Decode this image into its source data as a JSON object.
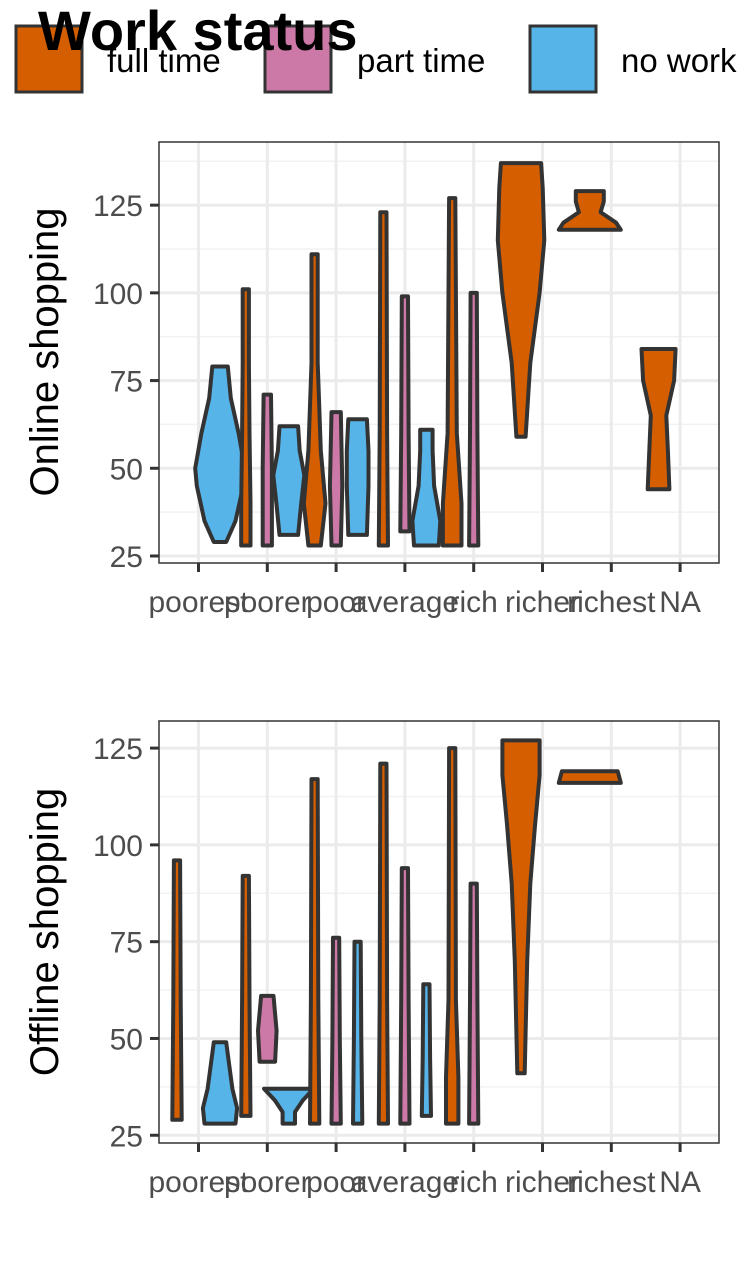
{
  "legend": {
    "title": "Work status",
    "items": [
      {
        "key": "full_time",
        "label": "full time",
        "color": "#D55E00"
      },
      {
        "key": "part_time",
        "label": "part time",
        "color": "#CC79A7"
      },
      {
        "key": "no_work",
        "label": "no work",
        "color": "#56B4E9"
      }
    ]
  },
  "chart_data": [
    {
      "type": "violin",
      "ylabel": "Online shopping",
      "xlabel": "",
      "categories": [
        "poorest",
        "poorer",
        "poor",
        "average",
        "rich",
        "richer",
        "richest",
        "NA"
      ],
      "ylim": [
        23,
        143
      ],
      "yticks": [
        25,
        50,
        75,
        100,
        125
      ],
      "grid": true,
      "violins": [
        {
          "category": "poorest",
          "status": "no_work",
          "min": 29,
          "max": 79,
          "shape": [
            [
              29,
              0.2
            ],
            [
              35,
              0.5
            ],
            [
              45,
              0.75
            ],
            [
              50,
              0.8
            ],
            [
              60,
              0.6
            ],
            [
              70,
              0.35
            ],
            [
              79,
              0.25
            ]
          ]
        },
        {
          "category": "poorer",
          "status": "full_time",
          "min": 28,
          "max": 101,
          "shape": [
            [
              28,
              0.15
            ],
            [
              40,
              0.15
            ],
            [
              60,
              0.12
            ],
            [
              80,
              0.1
            ],
            [
              101,
              0.1
            ]
          ]
        },
        {
          "category": "poorer",
          "status": "part_time",
          "min": 28,
          "max": 71,
          "shape": [
            [
              28,
              0.15
            ],
            [
              50,
              0.15
            ],
            [
              71,
              0.12
            ]
          ]
        },
        {
          "category": "poorer",
          "status": "no_work",
          "min": 31,
          "max": 62,
          "shape": [
            [
              31,
              0.3
            ],
            [
              40,
              0.4
            ],
            [
              48,
              0.5
            ],
            [
              55,
              0.35
            ],
            [
              62,
              0.3
            ]
          ]
        },
        {
          "category": "poor",
          "status": "full_time",
          "min": 28,
          "max": 111,
          "shape": [
            [
              28,
              0.2
            ],
            [
              40,
              0.35
            ],
            [
              55,
              0.2
            ],
            [
              80,
              0.1
            ],
            [
              111,
              0.1
            ]
          ]
        },
        {
          "category": "poor",
          "status": "part_time",
          "min": 28,
          "max": 66,
          "shape": [
            [
              28,
              0.15
            ],
            [
              45,
              0.2
            ],
            [
              66,
              0.15
            ]
          ]
        },
        {
          "category": "poor",
          "status": "no_work",
          "min": 31,
          "max": 64,
          "shape": [
            [
              31,
              0.3
            ],
            [
              45,
              0.35
            ],
            [
              55,
              0.35
            ],
            [
              64,
              0.3
            ]
          ]
        },
        {
          "category": "average",
          "status": "full_time",
          "min": 28,
          "max": 123,
          "shape": [
            [
              28,
              0.15
            ],
            [
              60,
              0.12
            ],
            [
              123,
              0.1
            ]
          ]
        },
        {
          "category": "average",
          "status": "part_time",
          "min": 32,
          "max": 99,
          "shape": [
            [
              32,
              0.15
            ],
            [
              60,
              0.12
            ],
            [
              99,
              0.1
            ]
          ]
        },
        {
          "category": "average",
          "status": "no_work",
          "min": 28,
          "max": 61,
          "shape": [
            [
              28,
              0.4
            ],
            [
              35,
              0.45
            ],
            [
              45,
              0.25
            ],
            [
              55,
              0.2
            ],
            [
              61,
              0.2
            ]
          ]
        },
        {
          "category": "rich",
          "status": "full_time",
          "min": 28,
          "max": 127,
          "shape": [
            [
              28,
              0.3
            ],
            [
              40,
              0.3
            ],
            [
              60,
              0.15
            ],
            [
              127,
              0.1
            ]
          ]
        },
        {
          "category": "rich",
          "status": "part_time",
          "min": 28,
          "max": 100,
          "shape": [
            [
              28,
              0.15
            ],
            [
              60,
              0.12
            ],
            [
              100,
              0.1
            ]
          ]
        },
        {
          "category": "richer",
          "status": "full_time",
          "min": 59,
          "max": 137,
          "shape": [
            [
              59,
              0.15
            ],
            [
              80,
              0.3
            ],
            [
              100,
              0.6
            ],
            [
              115,
              0.75
            ],
            [
              130,
              0.7
            ],
            [
              137,
              0.65
            ]
          ]
        },
        {
          "category": "richest",
          "status": "full_time",
          "min": 118,
          "max": 129,
          "shape": [
            [
              118,
              1.0
            ],
            [
              120,
              0.85
            ],
            [
              123,
              0.35
            ],
            [
              126,
              0.45
            ],
            [
              129,
              0.45
            ]
          ]
        },
        {
          "category": "NA",
          "status": "full_time",
          "min": 44,
          "max": 84,
          "shape": [
            [
              44,
              0.35
            ],
            [
              55,
              0.3
            ],
            [
              65,
              0.25
            ],
            [
              75,
              0.5
            ],
            [
              84,
              0.55
            ]
          ]
        }
      ]
    },
    {
      "type": "violin",
      "ylabel": "Offline shopping",
      "xlabel": "",
      "categories": [
        "poorest",
        "poorer",
        "poor",
        "average",
        "rich",
        "richer",
        "richest",
        "NA"
      ],
      "ylim": [
        23,
        132
      ],
      "yticks": [
        25,
        50,
        75,
        100,
        125
      ],
      "grid": true,
      "violins": [
        {
          "category": "poorest",
          "status": "full_time",
          "min": 29,
          "max": 96,
          "shape": [
            [
              29,
              0.15
            ],
            [
              60,
              0.12
            ],
            [
              96,
              0.1
            ]
          ]
        },
        {
          "category": "poorest",
          "status": "no_work",
          "min": 28,
          "max": 49,
          "shape": [
            [
              28,
              0.5
            ],
            [
              32,
              0.55
            ],
            [
              37,
              0.4
            ],
            [
              43,
              0.3
            ],
            [
              49,
              0.2
            ]
          ]
        },
        {
          "category": "poorer",
          "status": "full_time",
          "min": 30,
          "max": 92,
          "shape": [
            [
              30,
              0.15
            ],
            [
              60,
              0.12
            ],
            [
              92,
              0.1
            ]
          ]
        },
        {
          "category": "poorer",
          "status": "part_time",
          "min": 44,
          "max": 61,
          "shape": [
            [
              44,
              0.25
            ],
            [
              52,
              0.3
            ],
            [
              61,
              0.2
            ]
          ]
        },
        {
          "category": "poorer",
          "status": "no_work",
          "min": 28,
          "max": 37,
          "shape": [
            [
              28,
              0.2
            ],
            [
              31,
              0.2
            ],
            [
              34,
              0.45
            ],
            [
              37,
              0.8
            ]
          ]
        },
        {
          "category": "poor",
          "status": "full_time",
          "min": 28,
          "max": 117,
          "shape": [
            [
              28,
              0.15
            ],
            [
              60,
              0.12
            ],
            [
              117,
              0.1
            ]
          ]
        },
        {
          "category": "poor",
          "status": "part_time",
          "min": 28,
          "max": 76,
          "shape": [
            [
              28,
              0.15
            ],
            [
              50,
              0.12
            ],
            [
              76,
              0.1
            ]
          ]
        },
        {
          "category": "poor",
          "status": "no_work",
          "min": 28,
          "max": 75,
          "shape": [
            [
              28,
              0.15
            ],
            [
              50,
              0.12
            ],
            [
              75,
              0.1
            ]
          ]
        },
        {
          "category": "average",
          "status": "full_time",
          "min": 28,
          "max": 121,
          "shape": [
            [
              28,
              0.15
            ],
            [
              60,
              0.12
            ],
            [
              121,
              0.1
            ]
          ]
        },
        {
          "category": "average",
          "status": "part_time",
          "min": 28,
          "max": 94,
          "shape": [
            [
              28,
              0.15
            ],
            [
              60,
              0.12
            ],
            [
              94,
              0.1
            ]
          ]
        },
        {
          "category": "average",
          "status": "no_work",
          "min": 30,
          "max": 64,
          "shape": [
            [
              30,
              0.15
            ],
            [
              45,
              0.12
            ],
            [
              64,
              0.1
            ]
          ]
        },
        {
          "category": "rich",
          "status": "full_time",
          "min": 28,
          "max": 125,
          "shape": [
            [
              28,
              0.2
            ],
            [
              40,
              0.2
            ],
            [
              60,
              0.12
            ],
            [
              125,
              0.1
            ]
          ]
        },
        {
          "category": "rich",
          "status": "part_time",
          "min": 28,
          "max": 90,
          "shape": [
            [
              28,
              0.15
            ],
            [
              60,
              0.12
            ],
            [
              90,
              0.1
            ]
          ]
        },
        {
          "category": "richer",
          "status": "full_time",
          "min": 41,
          "max": 127,
          "shape": [
            [
              41,
              0.12
            ],
            [
              70,
              0.2
            ],
            [
              90,
              0.3
            ],
            [
              105,
              0.45
            ],
            [
              118,
              0.6
            ],
            [
              127,
              0.6
            ]
          ]
        },
        {
          "category": "richest",
          "status": "full_time",
          "min": 116,
          "max": 119,
          "shape": [
            [
              116,
              1.0
            ],
            [
              117.5,
              0.95
            ],
            [
              119,
              0.9
            ]
          ]
        }
      ]
    }
  ]
}
